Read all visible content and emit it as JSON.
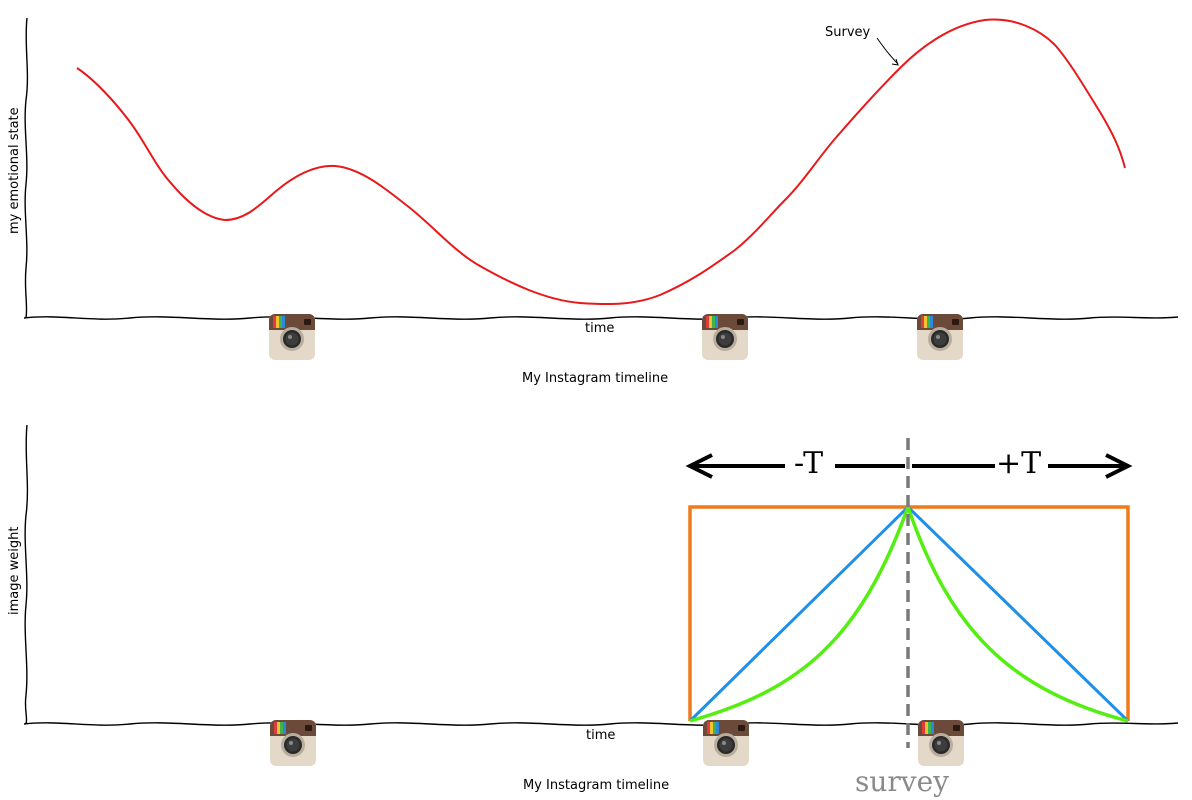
{
  "top_panel": {
    "ylabel": "my emotional state",
    "xlabel": "time",
    "caption": "My Instagram timeline",
    "annotation": "Survey",
    "curve_color": "#e8191b",
    "icon_name": "instagram-icon",
    "icon_count": 3
  },
  "bottom_panel": {
    "ylabel": "image weight",
    "xlabel": "time",
    "caption": "My Instagram timeline",
    "survey_label": "survey",
    "minus_label": "-T",
    "plus_label": "+T",
    "window_types": [
      {
        "kind": "uniform",
        "color": "#f07a1a"
      },
      {
        "kind": "linear",
        "color": "#1e90e8"
      },
      {
        "kind": "exponential",
        "color": "#55ee11"
      }
    ],
    "survey_line_color": "#7a7a7a",
    "icon_name": "instagram-icon",
    "icon_count": 3
  }
}
